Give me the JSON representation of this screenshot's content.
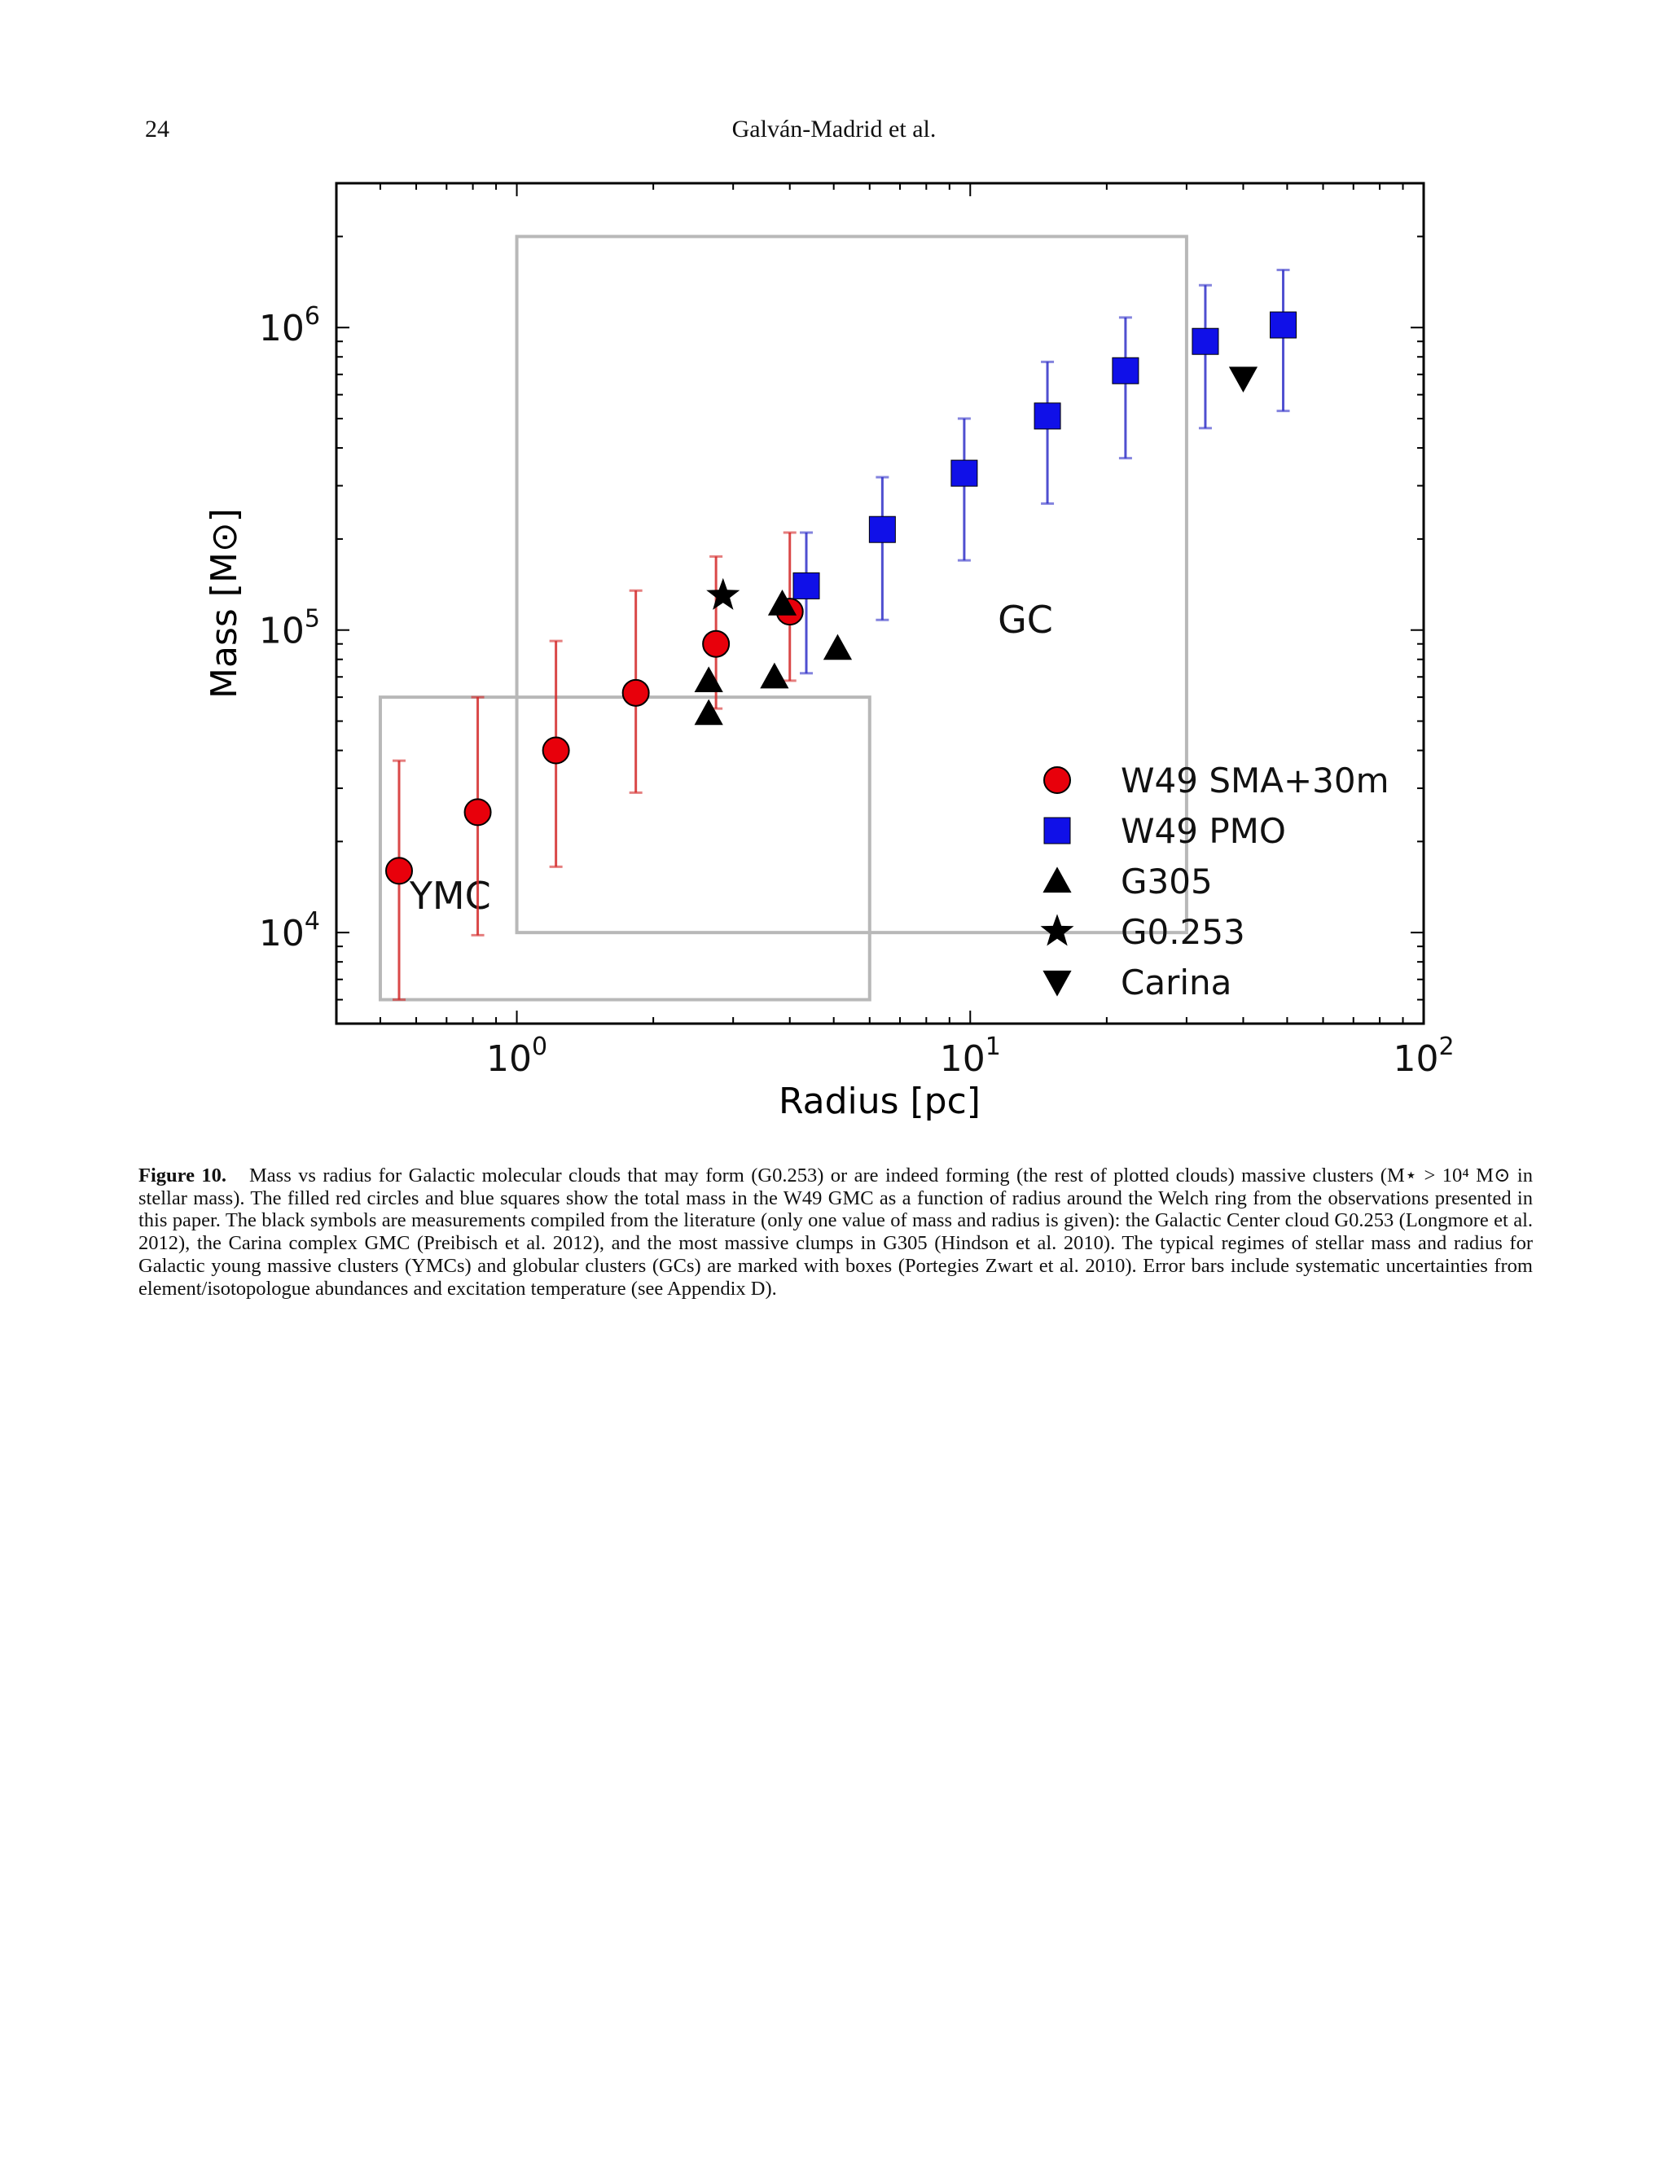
{
  "header": {
    "page_number": "24",
    "running_title": "Galván-Madrid et al."
  },
  "chart_data": {
    "type": "scatter",
    "xscale": "log",
    "yscale": "log",
    "xlabel": "Radius [pc]",
    "ylabel": "Mass [M⊙]",
    "xlim": [
      0.4,
      100
    ],
    "ylim": [
      5000,
      3000000
    ],
    "xticks": [
      {
        "value": 1,
        "label": "10",
        "exp": "0"
      },
      {
        "value": 10,
        "label": "10",
        "exp": "1"
      },
      {
        "value": 100,
        "label": "10",
        "exp": "2"
      }
    ],
    "yticks": [
      {
        "value": 10000,
        "label": "10",
        "exp": "4"
      },
      {
        "value": 100000,
        "label": "10",
        "exp": "5"
      },
      {
        "value": 1000000,
        "label": "10",
        "exp": "6"
      }
    ],
    "regions": [
      {
        "label": "YMC",
        "x": [
          0.5,
          6
        ],
        "y": [
          6000,
          60000
        ],
        "label_at": [
          0.58,
          12000
        ]
      },
      {
        "label": "GC",
        "x": [
          1,
          30
        ],
        "y": [
          10000,
          2000000
        ],
        "label_at": [
          11.5,
          98000
        ]
      }
    ],
    "series": [
      {
        "name": "W49 SMA+30m",
        "marker": "circle",
        "color": "#e8000b",
        "errcolor": "#d42828",
        "points": [
          {
            "x": 0.55,
            "y": 16000,
            "ylo": 6000,
            "yhi": 37000
          },
          {
            "x": 0.82,
            "y": 25000,
            "ylo": 9800,
            "yhi": 60000
          },
          {
            "x": 1.22,
            "y": 40000,
            "ylo": 16500,
            "yhi": 92000
          },
          {
            "x": 1.83,
            "y": 62000,
            "ylo": 29000,
            "yhi": 135000
          },
          {
            "x": 2.75,
            "y": 90000,
            "ylo": 55000,
            "yhi": 175000
          },
          {
            "x": 4.0,
            "y": 115000,
            "ylo": 68000,
            "yhi": 210000
          }
        ]
      },
      {
        "name": "W49 PMO",
        "marker": "square",
        "color": "#1010e8",
        "errcolor": "#3030c8",
        "points": [
          {
            "x": 4.35,
            "y": 140000,
            "ylo": 72000,
            "yhi": 210000
          },
          {
            "x": 6.4,
            "y": 215000,
            "ylo": 108000,
            "yhi": 320000
          },
          {
            "x": 9.7,
            "y": 330000,
            "ylo": 170000,
            "yhi": 500000
          },
          {
            "x": 14.8,
            "y": 510000,
            "ylo": 262000,
            "yhi": 770000
          },
          {
            "x": 22.0,
            "y": 720000,
            "ylo": 370000,
            "yhi": 1080000
          },
          {
            "x": 33.0,
            "y": 900000,
            "ylo": 465000,
            "yhi": 1380000
          },
          {
            "x": 49.0,
            "y": 1020000,
            "ylo": 530000,
            "yhi": 1550000
          }
        ]
      },
      {
        "name": "G305",
        "marker": "triangle-up",
        "color": "#000000",
        "points": [
          {
            "x": 2.65,
            "y": 53000
          },
          {
            "x": 2.65,
            "y": 68000
          },
          {
            "x": 3.7,
            "y": 70000
          },
          {
            "x": 3.85,
            "y": 122000
          },
          {
            "x": 5.1,
            "y": 87000
          }
        ]
      },
      {
        "name": "G0.253",
        "marker": "star",
        "color": "#000000",
        "points": [
          {
            "x": 2.85,
            "y": 130000
          }
        ]
      },
      {
        "name": "Carina",
        "marker": "triangle-down",
        "color": "#000000",
        "points": [
          {
            "x": 40.0,
            "y": 680000
          }
        ]
      }
    ],
    "legend": "lower-right"
  },
  "caption": {
    "label": "Figure 10.",
    "text": "Mass vs radius for Galactic molecular clouds that may form (G0.253) or are indeed forming (the rest of plotted clouds) massive clusters (M⋆ > 10⁴ M⊙ in stellar mass). The filled red circles and blue squares show the total mass in the W49 GMC as a function of radius around the Welch ring from the observations presented in this paper. The black symbols are measurements compiled from the literature (only one value of mass and radius is given): the Galactic Center cloud G0.253 (Longmore et al. 2012), the Carina complex GMC (Preibisch et al. 2012), and the most massive clumps in G305 (Hindson et al. 2010). The typical regimes of stellar mass and radius for Galactic young massive clusters (YMCs) and globular clusters (GCs) are marked with boxes (Portegies Zwart et al. 2010). Error bars include systematic uncertainties from element/isotopologue abundances and excitation temperature (see Appendix D)."
  }
}
